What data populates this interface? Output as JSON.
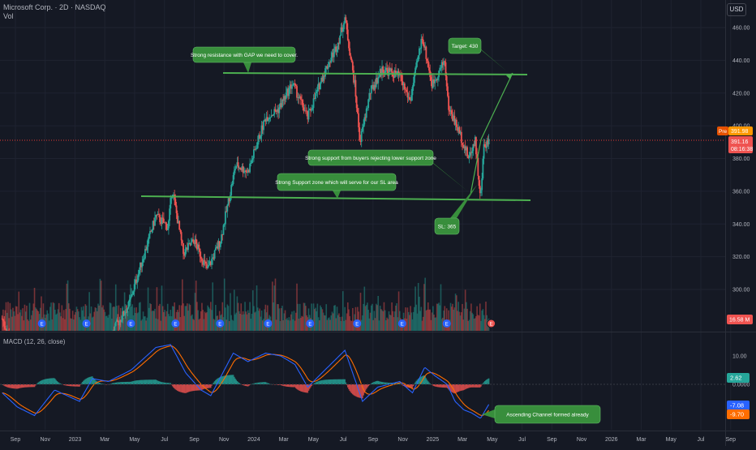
{
  "header": {
    "title": "Microsoft Corp. · 2D · NASDAQ",
    "vol_label": "Vol",
    "currency": "USD"
  },
  "colors": {
    "background": "#151924",
    "grid": "#1f2330",
    "up": "#26a69a",
    "down": "#ef5350",
    "annotation_line": "#4caf50",
    "annotation_box": "#388e3c",
    "macd_line": "#2962ff",
    "signal_line": "#ff6d00",
    "price_line": "#e53935"
  },
  "chart_data": [
    {
      "type": "candlestick",
      "title": "Microsoft Corp. · 2D · NASDAQ",
      "x_ticks": [
        "Sep",
        "Nov",
        "2023",
        "Mar",
        "May",
        "Jul",
        "Sep",
        "Nov",
        "2024",
        "Mar",
        "May",
        "Jul",
        "Sep",
        "Nov",
        "2025",
        "Mar",
        "May",
        "Jul",
        "Sep",
        "Nov",
        "2026",
        "Mar",
        "May",
        "Jul",
        "Sep"
      ],
      "y_ticks": [
        300,
        320,
        340,
        360,
        380,
        400,
        420,
        440,
        460
      ],
      "ylim": [
        285,
        475
      ],
      "grid": true,
      "price_path": [
        {
          "date": "2022-08-05",
          "price": 282
        },
        {
          "date": "2022-09-01",
          "price": 262
        },
        {
          "date": "2022-10-14",
          "price": 230
        },
        {
          "date": "2022-11-01",
          "price": 225
        },
        {
          "date": "2022-11-30",
          "price": 255
        },
        {
          "date": "2023-01-05",
          "price": 225
        },
        {
          "date": "2023-02-03",
          "price": 262
        },
        {
          "date": "2023-03-01",
          "price": 250
        },
        {
          "date": "2023-03-20",
          "price": 275
        },
        {
          "date": "2023-04-20",
          "price": 290
        },
        {
          "date": "2023-05-10",
          "price": 310
        },
        {
          "date": "2023-06-15",
          "price": 345
        },
        {
          "date": "2023-07-10",
          "price": 338
        },
        {
          "date": "2023-07-18",
          "price": 362
        },
        {
          "date": "2023-08-10",
          "price": 322
        },
        {
          "date": "2023-09-01",
          "price": 330
        },
        {
          "date": "2023-09-28",
          "price": 312
        },
        {
          "date": "2023-10-25",
          "price": 330
        },
        {
          "date": "2023-11-25",
          "price": 376
        },
        {
          "date": "2023-12-20",
          "price": 372
        },
        {
          "date": "2024-01-25",
          "price": 405
        },
        {
          "date": "2024-02-20",
          "price": 410
        },
        {
          "date": "2024-03-20",
          "price": 426
        },
        {
          "date": "2024-04-20",
          "price": 405
        },
        {
          "date": "2024-05-20",
          "price": 430
        },
        {
          "date": "2024-06-20",
          "price": 450
        },
        {
          "date": "2024-07-05",
          "price": 466
        },
        {
          "date": "2024-07-25",
          "price": 425
        },
        {
          "date": "2024-08-05",
          "price": 390
        },
        {
          "date": "2024-08-25",
          "price": 420
        },
        {
          "date": "2024-09-20",
          "price": 435
        },
        {
          "date": "2024-10-25",
          "price": 430
        },
        {
          "date": "2024-11-15",
          "price": 415
        },
        {
          "date": "2024-12-10",
          "price": 455
        },
        {
          "date": "2024-12-30",
          "price": 425
        },
        {
          "date": "2025-01-25",
          "price": 440
        },
        {
          "date": "2025-02-01",
          "price": 412
        },
        {
          "date": "2025-02-25",
          "price": 395
        },
        {
          "date": "2025-03-15",
          "price": 380
        },
        {
          "date": "2025-03-28",
          "price": 392
        },
        {
          "date": "2025-04-08",
          "price": 354
        },
        {
          "date": "2025-04-15",
          "price": 388
        },
        {
          "date": "2025-04-25",
          "price": 391
        }
      ],
      "volume_label": "16.58 M",
      "price_labels": [
        {
          "text": "Pre",
          "value": 391.98
        },
        {
          "text": "391.98",
          "value": 391.98
        },
        {
          "text": "391.16",
          "value": 391.16
        },
        {
          "text": "08:16:38",
          "value": 391.16
        }
      ],
      "annotations": {
        "resistance_note": "Strong resistance with GAP we need to cover.",
        "target_note": "Target: 430",
        "buyers_note": "Strong support from buyers rejecting lower support zone",
        "support_note": "Strong Support zone which will serve for our SL area",
        "sl_note": "SL: 365",
        "resistance_level": 432,
        "support_level": 357
      },
      "event_marker": "E"
    },
    {
      "type": "line",
      "title": "MACD (12, 26, close)",
      "y_ticks": [
        "10.00",
        "0.0000",
        "-10.00"
      ],
      "ylim": [
        -14,
        17
      ],
      "macd_points": [
        {
          "date": "2022-08-05",
          "value": -3
        },
        {
          "date": "2022-09-05",
          "value": -8
        },
        {
          "date": "2022-10-10",
          "value": -11
        },
        {
          "date": "2022-11-20",
          "value": -2
        },
        {
          "date": "2023-01-10",
          "value": -6
        },
        {
          "date": "2023-02-05",
          "value": 2
        },
        {
          "date": "2023-03-10",
          "value": 1
        },
        {
          "date": "2023-04-25",
          "value": 5
        },
        {
          "date": "2023-06-15",
          "value": 13
        },
        {
          "date": "2023-07-15",
          "value": 14
        },
        {
          "date": "2023-08-15",
          "value": 4
        },
        {
          "date": "2023-09-15",
          "value": -2
        },
        {
          "date": "2023-10-05",
          "value": -4
        },
        {
          "date": "2023-11-20",
          "value": 11
        },
        {
          "date": "2023-12-20",
          "value": 8
        },
        {
          "date": "2024-01-25",
          "value": 11
        },
        {
          "date": "2024-02-25",
          "value": 10
        },
        {
          "date": "2024-03-25",
          "value": 7
        },
        {
          "date": "2024-04-20",
          "value": -1
        },
        {
          "date": "2024-05-25",
          "value": 5
        },
        {
          "date": "2024-07-05",
          "value": 12
        },
        {
          "date": "2024-08-10",
          "value": -6
        },
        {
          "date": "2024-09-10",
          "value": -1
        },
        {
          "date": "2024-10-25",
          "value": 1
        },
        {
          "date": "2024-11-20",
          "value": -3
        },
        {
          "date": "2024-12-15",
          "value": 6
        },
        {
          "date": "2025-01-05",
          "value": 3
        },
        {
          "date": "2025-01-30",
          "value": 0
        },
        {
          "date": "2025-02-15",
          "value": -6
        },
        {
          "date": "2025-03-05",
          "value": -9
        },
        {
          "date": "2025-03-20",
          "value": -10
        },
        {
          "date": "2025-04-08",
          "value": -12
        },
        {
          "date": "2025-04-25",
          "value": -7.08
        }
      ],
      "macd_value_label": "-7.08",
      "signal_value_label": "-9.70",
      "histogram_value_label": "2.62",
      "annotation": "Ascending Channel formed already"
    }
  ]
}
